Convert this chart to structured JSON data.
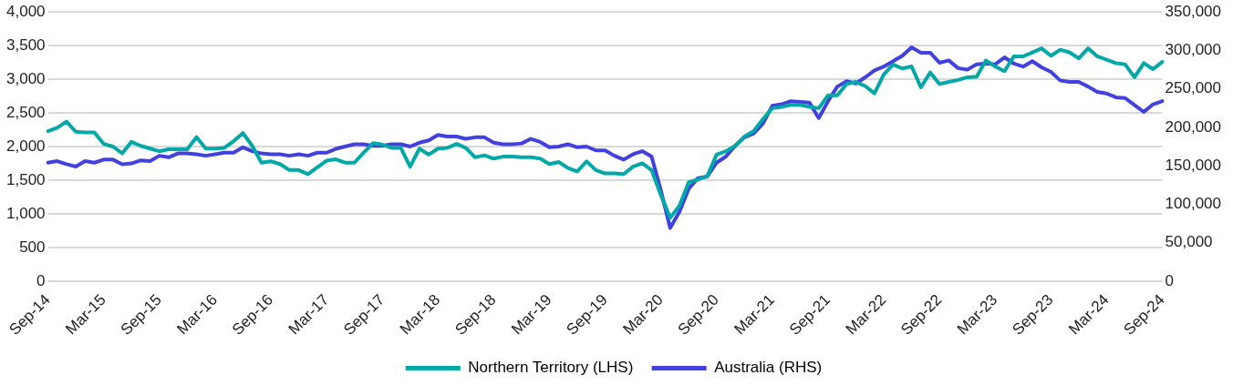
{
  "chart_data": {
    "type": "line",
    "categories": [
      "Sep-14",
      null,
      null,
      null,
      null,
      null,
      "Mar-15",
      null,
      null,
      null,
      null,
      null,
      "Sep-15",
      null,
      null,
      null,
      null,
      null,
      "Mar-16",
      null,
      null,
      null,
      null,
      null,
      "Sep-16",
      null,
      null,
      null,
      null,
      null,
      "Mar-17",
      null,
      null,
      null,
      null,
      null,
      "Sep-17",
      null,
      null,
      null,
      null,
      null,
      "Mar-18",
      null,
      null,
      null,
      null,
      null,
      "Sep-18",
      null,
      null,
      null,
      null,
      null,
      "Mar-19",
      null,
      null,
      null,
      null,
      null,
      "Sep-19",
      null,
      null,
      null,
      null,
      null,
      "Mar-20",
      null,
      null,
      null,
      null,
      null,
      "Sep-20",
      null,
      null,
      null,
      null,
      null,
      "Mar-21",
      null,
      null,
      null,
      null,
      null,
      "Sep-21",
      null,
      null,
      null,
      null,
      null,
      "Mar-22",
      null,
      null,
      null,
      null,
      null,
      "Sep-22",
      null,
      null,
      null,
      null,
      null,
      "Mar-23",
      null,
      null,
      null,
      null,
      null,
      "Sep-23",
      null,
      null,
      null,
      null,
      null,
      "Mar-24",
      null,
      null,
      null,
      null,
      null,
      "Sep-24"
    ],
    "series": [
      {
        "name": "Northern Territory (LHS)",
        "color": "#00a8a8",
        "values": [
          2230,
          2280,
          2370,
          2220,
          2210,
          2210,
          2040,
          2000,
          1900,
          2070,
          2010,
          1970,
          1930,
          1960,
          1960,
          1960,
          2140,
          1970,
          1970,
          1980,
          2080,
          2200,
          2010,
          1760,
          1780,
          1740,
          1650,
          1650,
          1590,
          1690,
          1790,
          1810,
          1760,
          1760,
          1910,
          2050,
          2030,
          1980,
          1980,
          1700,
          1970,
          1880,
          1970,
          1980,
          2040,
          1980,
          1840,
          1870,
          1820,
          1850,
          1850,
          1840,
          1840,
          1820,
          1740,
          1770,
          1680,
          1630,
          1780,
          1650,
          1600,
          1600,
          1590,
          1700,
          1750,
          1650,
          1280,
          940,
          1120,
          1470,
          1510,
          1560,
          1880,
          1930,
          2010,
          2150,
          2230,
          2410,
          2570,
          2590,
          2620,
          2620,
          2590,
          2570,
          2760,
          2760,
          2930,
          2960,
          2900,
          2790,
          3070,
          3220,
          3160,
          3190,
          2880,
          3100,
          2930,
          2960,
          2990,
          3030,
          3040,
          3280,
          3190,
          3120,
          3340,
          3340,
          3400,
          3460,
          3350,
          3440,
          3400,
          3310,
          3460,
          3340,
          3290,
          3240,
          3220,
          3030,
          3240,
          3150,
          3260
        ]
      },
      {
        "name": "Australia (RHS)",
        "color": "#4141e0",
        "axis": "y2",
        "values": [
          154000,
          156000,
          152000,
          149000,
          156000,
          154000,
          158000,
          158000,
          152000,
          153000,
          157000,
          156000,
          163000,
          161000,
          166000,
          166000,
          165000,
          163000,
          165000,
          167000,
          167000,
          174000,
          169000,
          166000,
          165000,
          165000,
          163000,
          165000,
          163000,
          167000,
          167000,
          172000,
          175000,
          178000,
          178000,
          176000,
          176000,
          178000,
          178000,
          175000,
          180000,
          183000,
          190000,
          188000,
          188000,
          185000,
          187000,
          187000,
          180000,
          178000,
          178000,
          179000,
          185000,
          181000,
          174000,
          175000,
          178000,
          174000,
          175000,
          170000,
          170000,
          163000,
          158000,
          165000,
          169000,
          162000,
          118000,
          69000,
          90000,
          120000,
          134000,
          136000,
          154000,
          162000,
          176000,
          187000,
          192000,
          205000,
          228000,
          230000,
          234000,
          233000,
          232000,
          212000,
          234000,
          253000,
          260000,
          257000,
          265000,
          274000,
          279000,
          286000,
          293000,
          304000,
          297000,
          297000,
          284000,
          287000,
          277000,
          275000,
          282000,
          283000,
          282000,
          291000,
          283000,
          279000,
          286000,
          278000,
          272000,
          261000,
          259000,
          259000,
          253000,
          246000,
          244000,
          239000,
          238000,
          229000,
          220000,
          230000,
          234000
        ]
      }
    ],
    "ylim": [
      0,
      4000
    ],
    "yticks": [
      0,
      500,
      {
        "value": 1000,
        "label": "1,000"
      },
      {
        "value": 1500,
        "label": "1,500"
      },
      {
        "value": 2000,
        "label": "2,000"
      },
      {
        "value": 2500,
        "label": "2,500"
      },
      {
        "value": 3000,
        "label": "3,000"
      },
      {
        "value": 3500,
        "label": "3,500"
      },
      {
        "value": 4000,
        "label": "4,000"
      }
    ],
    "y2lim": [
      0,
      350000
    ],
    "y2ticks": [
      0,
      {
        "value": 50000,
        "label": "50,000"
      },
      {
        "value": 100000,
        "label": "100,000"
      },
      {
        "value": 150000,
        "label": "150,000"
      },
      {
        "value": 200000,
        "label": "200,000"
      },
      {
        "value": 250000,
        "label": "250,000"
      },
      {
        "value": 300000,
        "label": "300,000"
      },
      {
        "value": 350000,
        "label": "350,000"
      }
    ],
    "grid": "y",
    "legend": "bottom",
    "marker": "none",
    "line_style": "solid"
  }
}
